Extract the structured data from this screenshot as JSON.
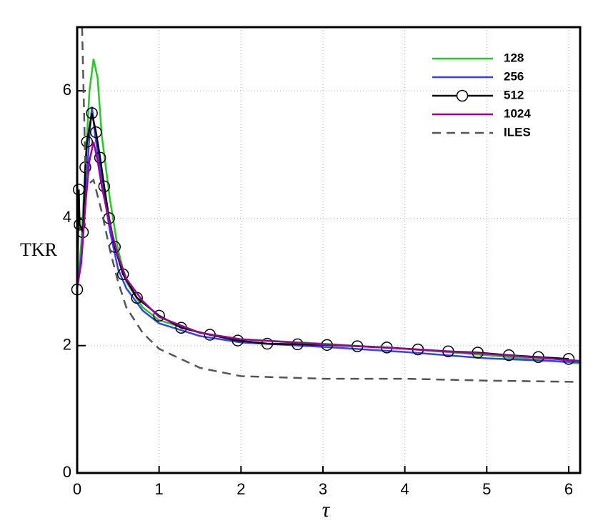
{
  "chart_data": {
    "type": "line",
    "x_label": "τ",
    "y_label": "TKR",
    "xlim": [
      0,
      6.14
    ],
    "ylim": [
      0,
      7
    ],
    "xticks": [
      0,
      1,
      2,
      3,
      4,
      5,
      6
    ],
    "yticks": [
      0,
      2,
      4,
      6
    ],
    "grid": true,
    "legend": "upper right",
    "series": [
      {
        "name": "128",
        "color": "#22cc22",
        "x": [
          0,
          0.05,
          0.1,
          0.15,
          0.2,
          0.25,
          0.3,
          0.4,
          0.5,
          0.6,
          0.8,
          1.0,
          1.5,
          2,
          3,
          4,
          5,
          6.14
        ],
        "values": [
          2.9,
          3.6,
          4.8,
          6.0,
          6.5,
          6.2,
          5.3,
          4.3,
          3.5,
          3.0,
          2.6,
          2.4,
          2.2,
          2.1,
          2.03,
          1.95,
          1.85,
          1.72
        ]
      },
      {
        "name": "256",
        "color": "#3344ee",
        "x": [
          0,
          0.05,
          0.1,
          0.15,
          0.18,
          0.22,
          0.3,
          0.4,
          0.5,
          0.6,
          0.8,
          1.0,
          1.5,
          2,
          3,
          4,
          5,
          6.14
        ],
        "values": [
          2.9,
          3.4,
          4.3,
          5.3,
          5.75,
          5.3,
          4.6,
          3.8,
          3.2,
          2.9,
          2.55,
          2.35,
          2.15,
          2.05,
          1.98,
          1.9,
          1.8,
          1.74
        ]
      },
      {
        "name": "512",
        "color": "#000000",
        "marker": "circle",
        "x": [
          0,
          0.02,
          0.03,
          0.07,
          0.1,
          0.12,
          0.18,
          0.23,
          0.28,
          0.33,
          0.39,
          0.46,
          0.56,
          0.73,
          1.0,
          1.27,
          1.62,
          1.96,
          2.32,
          2.69,
          3.05,
          3.42,
          3.78,
          4.16,
          4.53,
          4.89,
          5.27,
          5.63,
          6.0
        ],
        "values": [
          2.88,
          4.45,
          3.9,
          3.78,
          4.8,
          5.2,
          5.65,
          5.35,
          4.95,
          4.5,
          4.0,
          3.55,
          3.12,
          2.75,
          2.47,
          2.28,
          2.17,
          2.08,
          2.03,
          2.02,
          2.01,
          1.99,
          1.97,
          1.94,
          1.91,
          1.89,
          1.85,
          1.82,
          1.79
        ]
      },
      {
        "name": "1024",
        "color": "#a000a0",
        "x": [
          0,
          0.05,
          0.1,
          0.15,
          0.2,
          0.25,
          0.3,
          0.4,
          0.5,
          0.6,
          0.8,
          1.0,
          1.5,
          2,
          3,
          4,
          5,
          6.14
        ],
        "values": [
          2.9,
          3.3,
          4.2,
          4.9,
          5.2,
          4.9,
          4.5,
          3.9,
          3.4,
          3.05,
          2.7,
          2.45,
          2.2,
          2.1,
          2.02,
          1.95,
          1.87,
          1.76
        ]
      },
      {
        "name": "ILES",
        "color": "#555555",
        "dash": true,
        "x": [
          0.06,
          0.1,
          0.15,
          0.2,
          0.3,
          0.4,
          0.5,
          0.6,
          0.8,
          1.0,
          1.5,
          2,
          3,
          4,
          5,
          6.14
        ],
        "values": [
          7.0,
          4.8,
          4.55,
          4.6,
          4.1,
          3.5,
          3.0,
          2.6,
          2.2,
          1.95,
          1.65,
          1.52,
          1.48,
          1.48,
          1.45,
          1.43
        ]
      }
    ]
  }
}
